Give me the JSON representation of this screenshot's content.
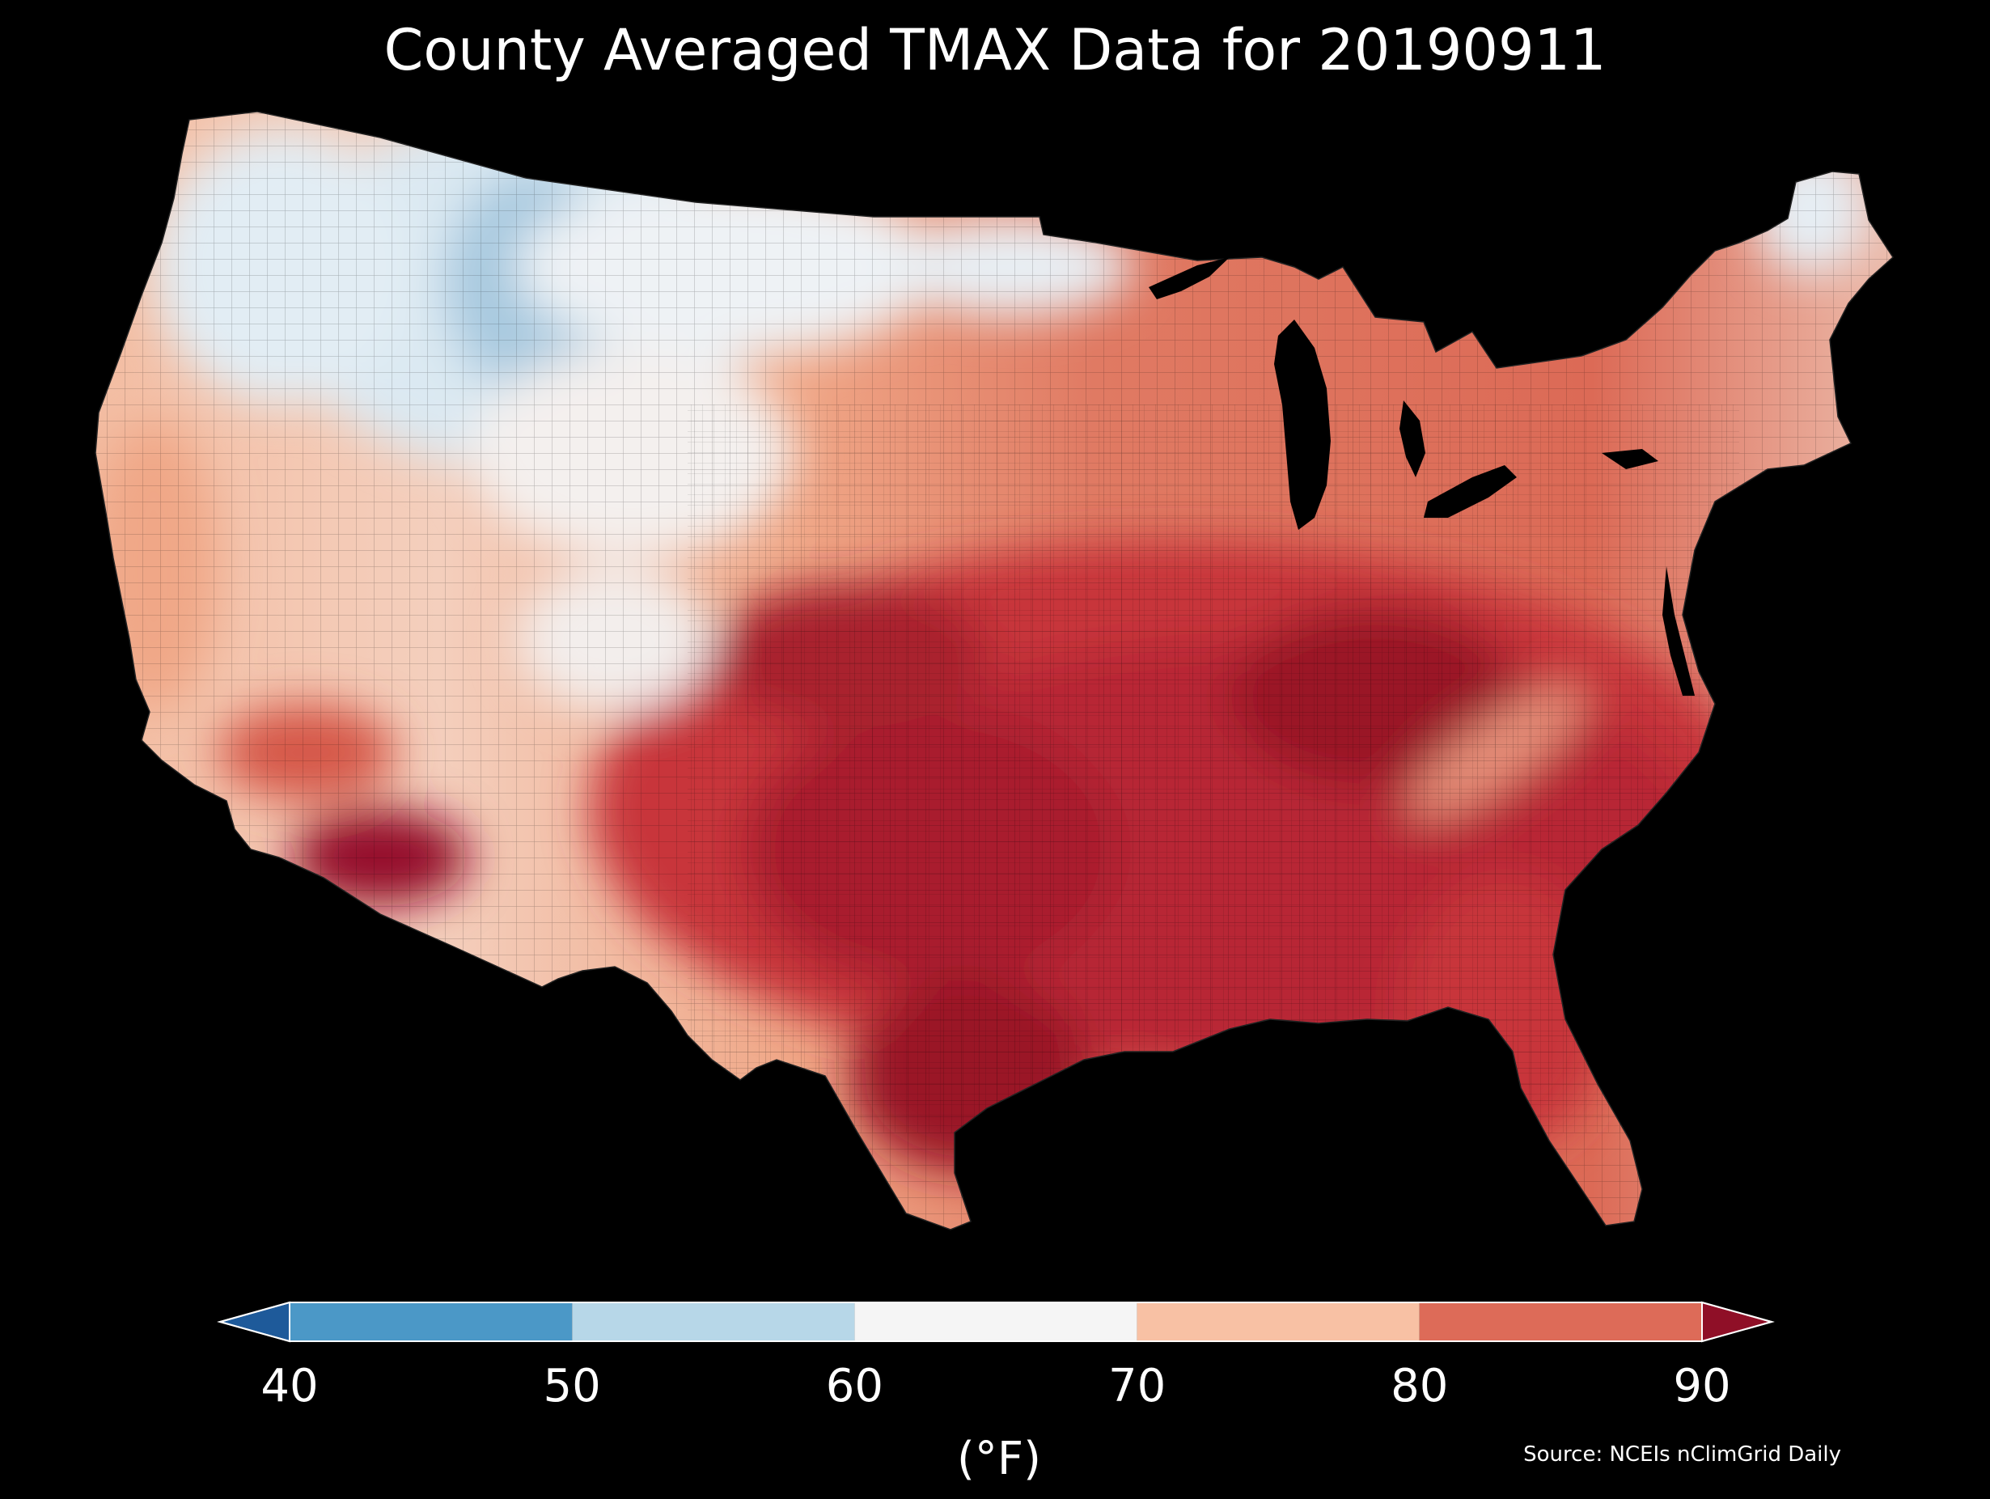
{
  "title": "County Averaged TMAX Data for 20190911",
  "colorbar": {
    "ticks": [
      "40",
      "50",
      "60",
      "70",
      "80",
      "90"
    ],
    "unit_label": "(°F)",
    "extend": "both",
    "bins": [
      {
        "range": [
          40,
          50
        ],
        "color": "#4b98c7"
      },
      {
        "range": [
          50,
          60
        ],
        "color": "#b7d7e8"
      },
      {
        "range": [
          60,
          70
        ],
        "color": "#f5f5f5"
      },
      {
        "range": [
          70,
          80
        ],
        "color": "#f8c1a4"
      },
      {
        "range": [
          80,
          90
        ],
        "color": "#dd6b58"
      }
    ],
    "under_color": "#1e5a9a",
    "over_color": "#8f0f27"
  },
  "source": "Source: NCEIs nClimGrid Daily",
  "map": {
    "region": "Contiguous United States, county-level",
    "background_color": "#000000",
    "palette": {
      "cold_deep": "#7fb3d5",
      "cold": "#a9cde3",
      "cool": "#d6e8f2",
      "mild": "#f2f4f5",
      "warm_light": "#f6d5c4",
      "warm": "#f0a788",
      "hot": "#dc6650",
      "hotter": "#c9373a",
      "hottest": "#a51c2d",
      "extreme": "#8d0e24"
    }
  }
}
